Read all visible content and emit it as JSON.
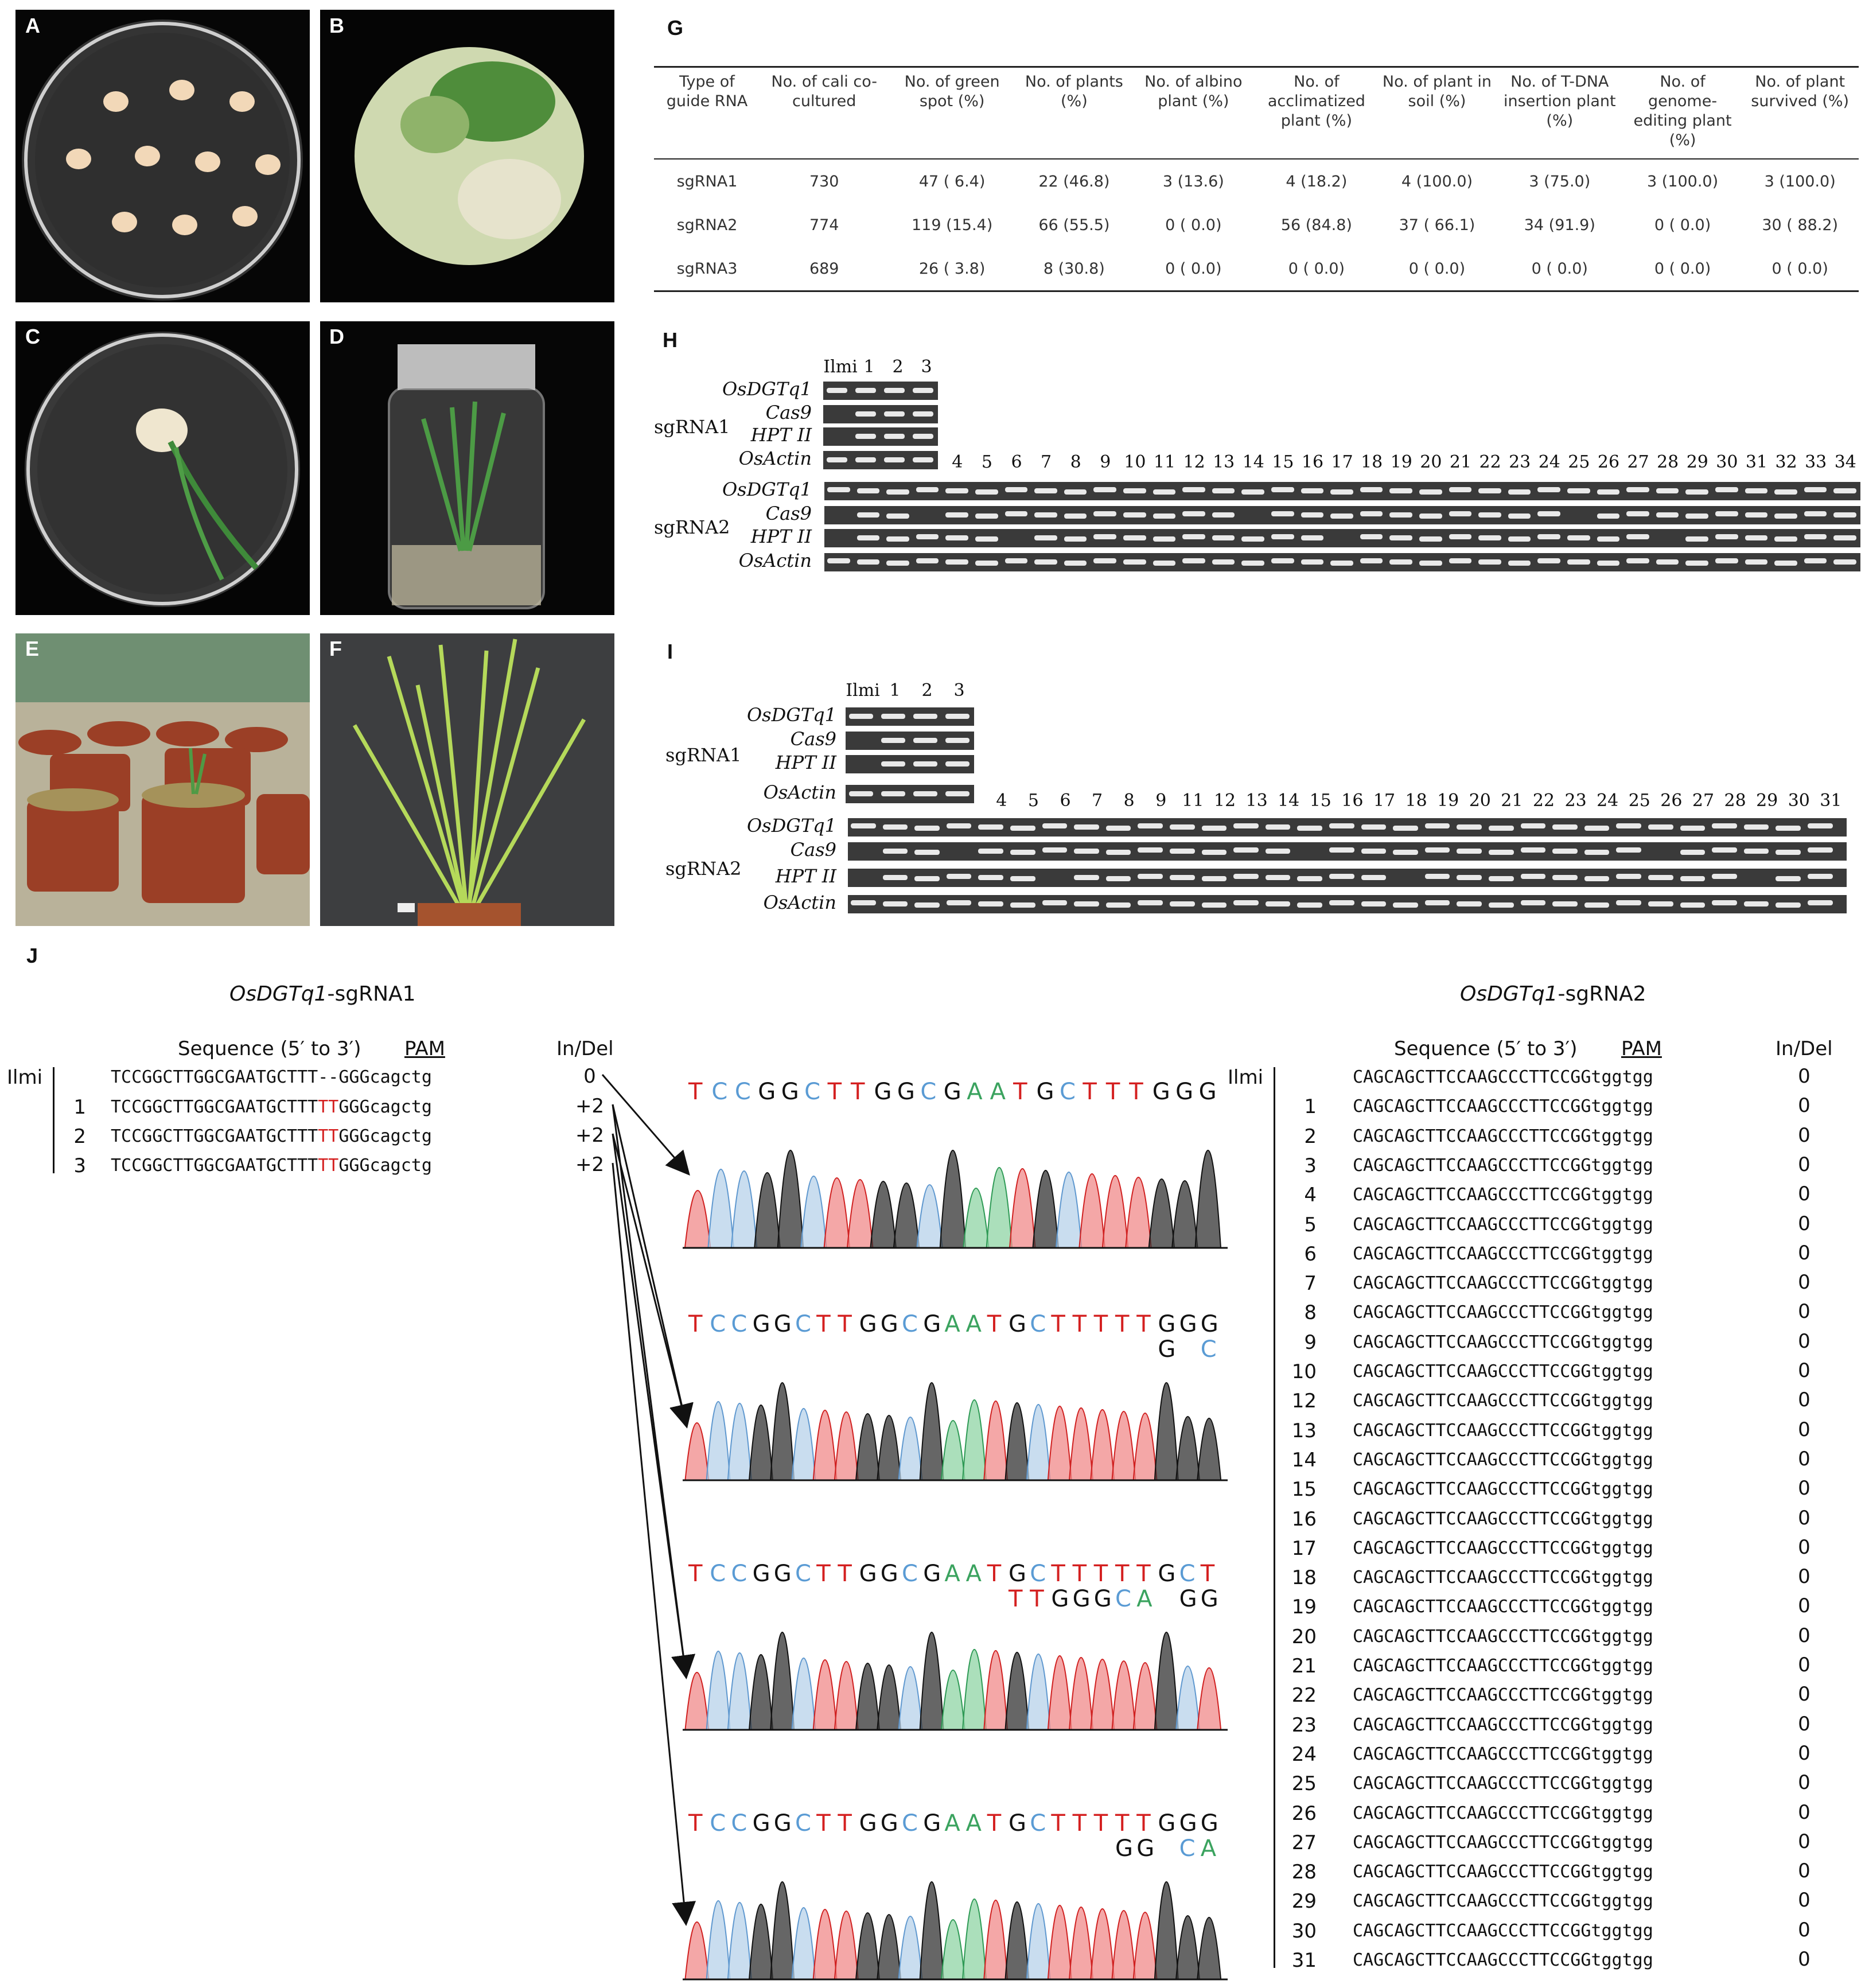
{
  "panels": {
    "a": "A",
    "b": "B",
    "c": "C",
    "d": "D",
    "e": "E",
    "f": "F",
    "g": "G",
    "h": "H",
    "i": "I",
    "j": "J"
  },
  "table_g": {
    "headers": [
      "Type of guide RNA",
      "No. of cali co-cultured",
      "No. of green spot (%)",
      "No. of plants (%)",
      "No. of albino plant (%)",
      "No. of acclimatized plant (%)",
      "No. of plant in soil (%)",
      "No. of T-DNA insertion plant (%)",
      "No. of genome-editing plant (%)",
      "No. of plant survived (%)"
    ],
    "rows": [
      [
        "sgRNA1",
        "730",
        "47 ( 6.4)",
        "22 (46.8)",
        "3 (13.6)",
        "4 (18.2)",
        "4 (100.0)",
        "3 (75.0)",
        "3 (100.0)",
        "3 (100.0)"
      ],
      [
        "sgRNA2",
        "774",
        "119 (15.4)",
        "66 (55.5)",
        "0 ( 0.0)",
        "56 (84.8)",
        "37 ( 66.1)",
        "34 (91.9)",
        "0 ( 0.0)",
        "30 ( 88.2)"
      ],
      [
        "sgRNA3",
        "689",
        "26 ( 3.8)",
        "8 (30.8)",
        "0 ( 0.0)",
        "0 ( 0.0)",
        "0 ( 0.0)",
        "0 ( 0.0)",
        "0 ( 0.0)",
        "0 ( 0.0)"
      ]
    ]
  },
  "gel_h": {
    "top_lanes": [
      "Ilmi",
      "1",
      "2",
      "3"
    ],
    "bottom_lanes": [
      "4",
      "5",
      "6",
      "7",
      "8",
      "9",
      "10",
      "11",
      "12",
      "13",
      "14",
      "15",
      "16",
      "17",
      "18",
      "19",
      "20",
      "21",
      "22",
      "23",
      "24",
      "25",
      "26",
      "27",
      "28",
      "29",
      "30",
      "31",
      "32",
      "33",
      "34"
    ],
    "genes": [
      "OsDGTq1",
      "Cas9",
      "HPT II",
      "OsActin"
    ],
    "groups": [
      "sgRNA1",
      "sgRNA2"
    ]
  },
  "gel_i": {
    "top_lanes": [
      "Ilmi",
      "1",
      "2",
      "3"
    ],
    "bottom_lanes": [
      "4",
      "5",
      "6",
      "7",
      "8",
      "9",
      "11",
      "12",
      "13",
      "14",
      "15",
      "16",
      "17",
      "18",
      "19",
      "20",
      "21",
      "22",
      "23",
      "24",
      "25",
      "26",
      "27",
      "28",
      "29",
      "30",
      "31"
    ],
    "genes": [
      "OsDGTq1",
      "Cas9",
      "HPT II",
      "OsActin"
    ],
    "groups": [
      "sgRNA1",
      "sgRNA2"
    ]
  },
  "panel_j": {
    "left_title_gene": "OsDGTq1",
    "left_title_suffix": "-sgRNA1",
    "right_title_gene": "OsDGTq1",
    "right_title_suffix": "-sgRNA2",
    "seq_header": "Sequence (5′ to 3′)",
    "pam_header": "PAM",
    "indel_header": "In/Del",
    "left_rows": [
      {
        "id": "Ilmi",
        "pre": "TCCGGCTTGGCGAATGCTTT",
        "ins": "--",
        "post": "GGGcagctg",
        "indel": "0"
      },
      {
        "id": "1",
        "pre": "TCCGGCTTGGCGAATGCTTT",
        "ins": "TT",
        "post": "GGGcagctg",
        "indel": "+2"
      },
      {
        "id": "2",
        "pre": "TCCGGCTTGGCGAATGCTTT",
        "ins": "TT",
        "post": "GGGcagctg",
        "indel": "+2"
      },
      {
        "id": "3",
        "pre": "TCCGGCTTGGCGAATGCTTT",
        "ins": "TT",
        "post": "GGGcagctg",
        "indel": "+2"
      }
    ],
    "right_ids": [
      "Ilmi",
      "1",
      "2",
      "3",
      "4",
      "5",
      "6",
      "7",
      "8",
      "9",
      "10",
      "12",
      "13",
      "14",
      "15",
      "16",
      "17",
      "18",
      "19",
      "20",
      "21",
      "22",
      "23",
      "24",
      "25",
      "26",
      "27",
      "28",
      "29",
      "30",
      "31"
    ],
    "right_seq": "CAGCAGCTTCCAAGCCCTTCCGGtggtgg",
    "right_indel": "0",
    "traces": [
      {
        "top": "TCCGGCTTGGCGAATGCTTTGGG",
        "second": ""
      },
      {
        "top": "TCCGGCTTGGCGAATGCTTTTTGGG",
        "second": "G C"
      },
      {
        "top": "TCCGGCTTGGCGAATGCTTTTTGCT",
        "second": "TTGGGCA GG"
      },
      {
        "top": "TCCGGCTTGGCGAATGCTTTTTGGG",
        "second": "GG CA"
      }
    ]
  },
  "colors": {
    "A": "#3ba35f",
    "C": "#5a9bd4",
    "G": "#111111",
    "T": "#d42020"
  }
}
